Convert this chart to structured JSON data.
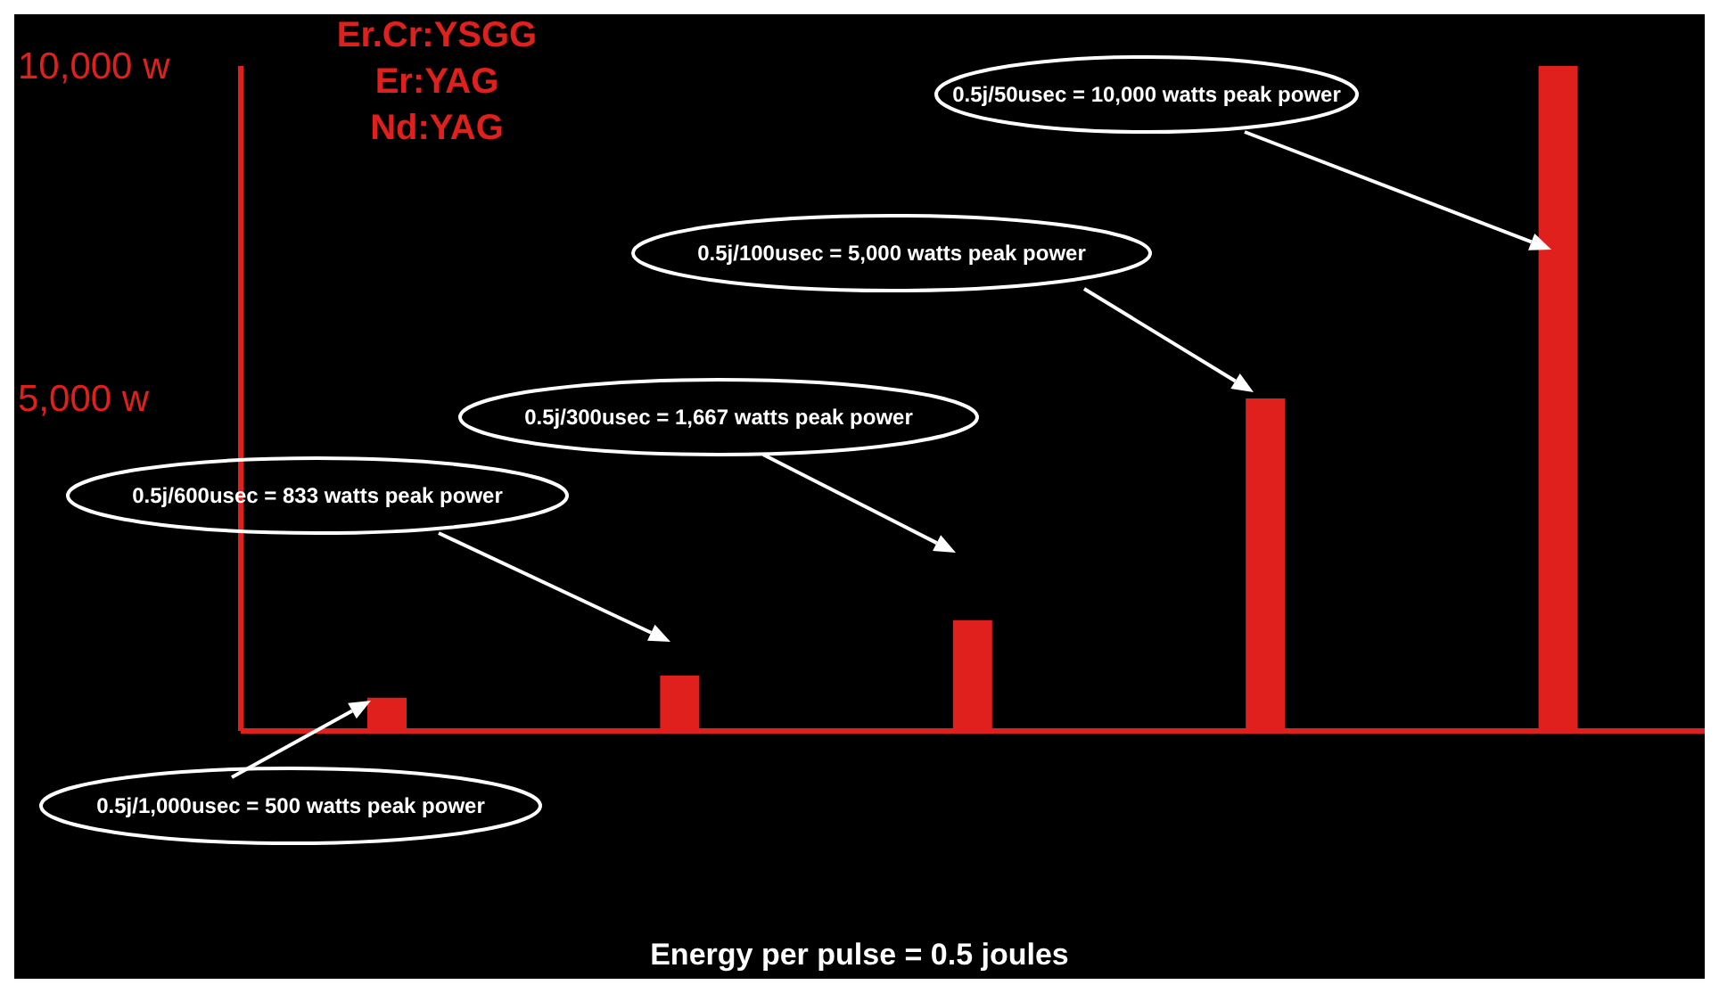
{
  "chart_data": {
    "type": "bar",
    "categories": [
      null,
      null,
      null,
      null,
      null
    ],
    "values": [
      500,
      833,
      1667,
      5000,
      10000
    ],
    "color": "#e0201c",
    "ylim": [
      0,
      10000
    ],
    "yticks": [
      {
        "value": 5000,
        "label": "5,000 w"
      },
      {
        "value": 10000,
        "label": "10,000 w"
      }
    ],
    "grid": false,
    "legend": false,
    "annotations": [
      "0.5j/1,000usec = 500 watts peak power",
      "0.5j/600usec = 833 watts peak power",
      "0.5j/300usec = 1,667 watts peak power",
      "0.5j/100usec = 5,000 watts peak power",
      "0.5j/50usec = 10,000 watts peak power",
      "Er.Cr:YSGG",
      "Er:YAG",
      "Nd:YAG",
      "Energy per pulse = 0.5 joules"
    ]
  }
}
